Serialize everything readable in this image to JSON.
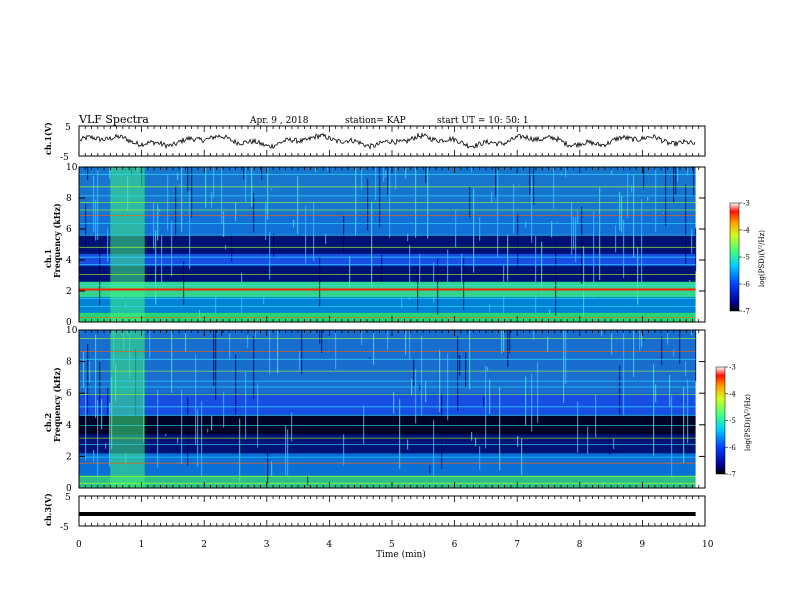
{
  "header": {
    "title": "VLF Spectra",
    "date": "Apr. 9 , 2018",
    "station": "station= KAP",
    "start": "start UT = 10: 50: 1"
  },
  "chart_data": [
    {
      "type": "line",
      "panel": "ch1-waveform",
      "ylabel": "ch.1(V)",
      "ylim": [
        -5,
        5
      ],
      "yticks": [
        "5",
        "-5"
      ],
      "description_values": {
        "mean": 0,
        "amplitude": 2.5
      }
    },
    {
      "type": "heatmap",
      "panel": "ch1-spectrogram",
      "ylabel": "ch.1\nFrequency (kHz)",
      "ylim": [
        0,
        10
      ],
      "yticks": [
        "0",
        "2",
        "4",
        "6",
        "8",
        "10"
      ],
      "colorbar": {
        "label": "log(PSD)(V²/Hz)",
        "ticks": [
          "-3",
          "-4",
          "-5",
          "-6",
          "-7"
        ],
        "range": [
          -7,
          -3
        ]
      }
    },
    {
      "type": "heatmap",
      "panel": "ch2-spectrogram",
      "ylabel": "ch.2\nFrequency (kHz)",
      "ylim": [
        0,
        10
      ],
      "yticks": [
        "0",
        "2",
        "4",
        "6",
        "8",
        "10"
      ],
      "colorbar": {
        "label": "log(PSD)(V²/Hz)",
        "ticks": [
          "-3",
          "-4",
          "-5",
          "-6",
          "-7"
        ],
        "range": [
          -7,
          -3
        ]
      }
    },
    {
      "type": "line",
      "panel": "ch3-waveform",
      "ylabel": "ch.3(V)",
      "ylim": [
        -5,
        5
      ],
      "yticks": [
        "5",
        "-5"
      ],
      "level": -1
    }
  ],
  "xaxis": {
    "xlabel": "Time (min)",
    "xlim": [
      0,
      10
    ],
    "ticks": [
      "0",
      "1",
      "2",
      "3",
      "4",
      "5",
      "6",
      "7",
      "8",
      "9",
      "10"
    ],
    "data_end": 9.85
  }
}
